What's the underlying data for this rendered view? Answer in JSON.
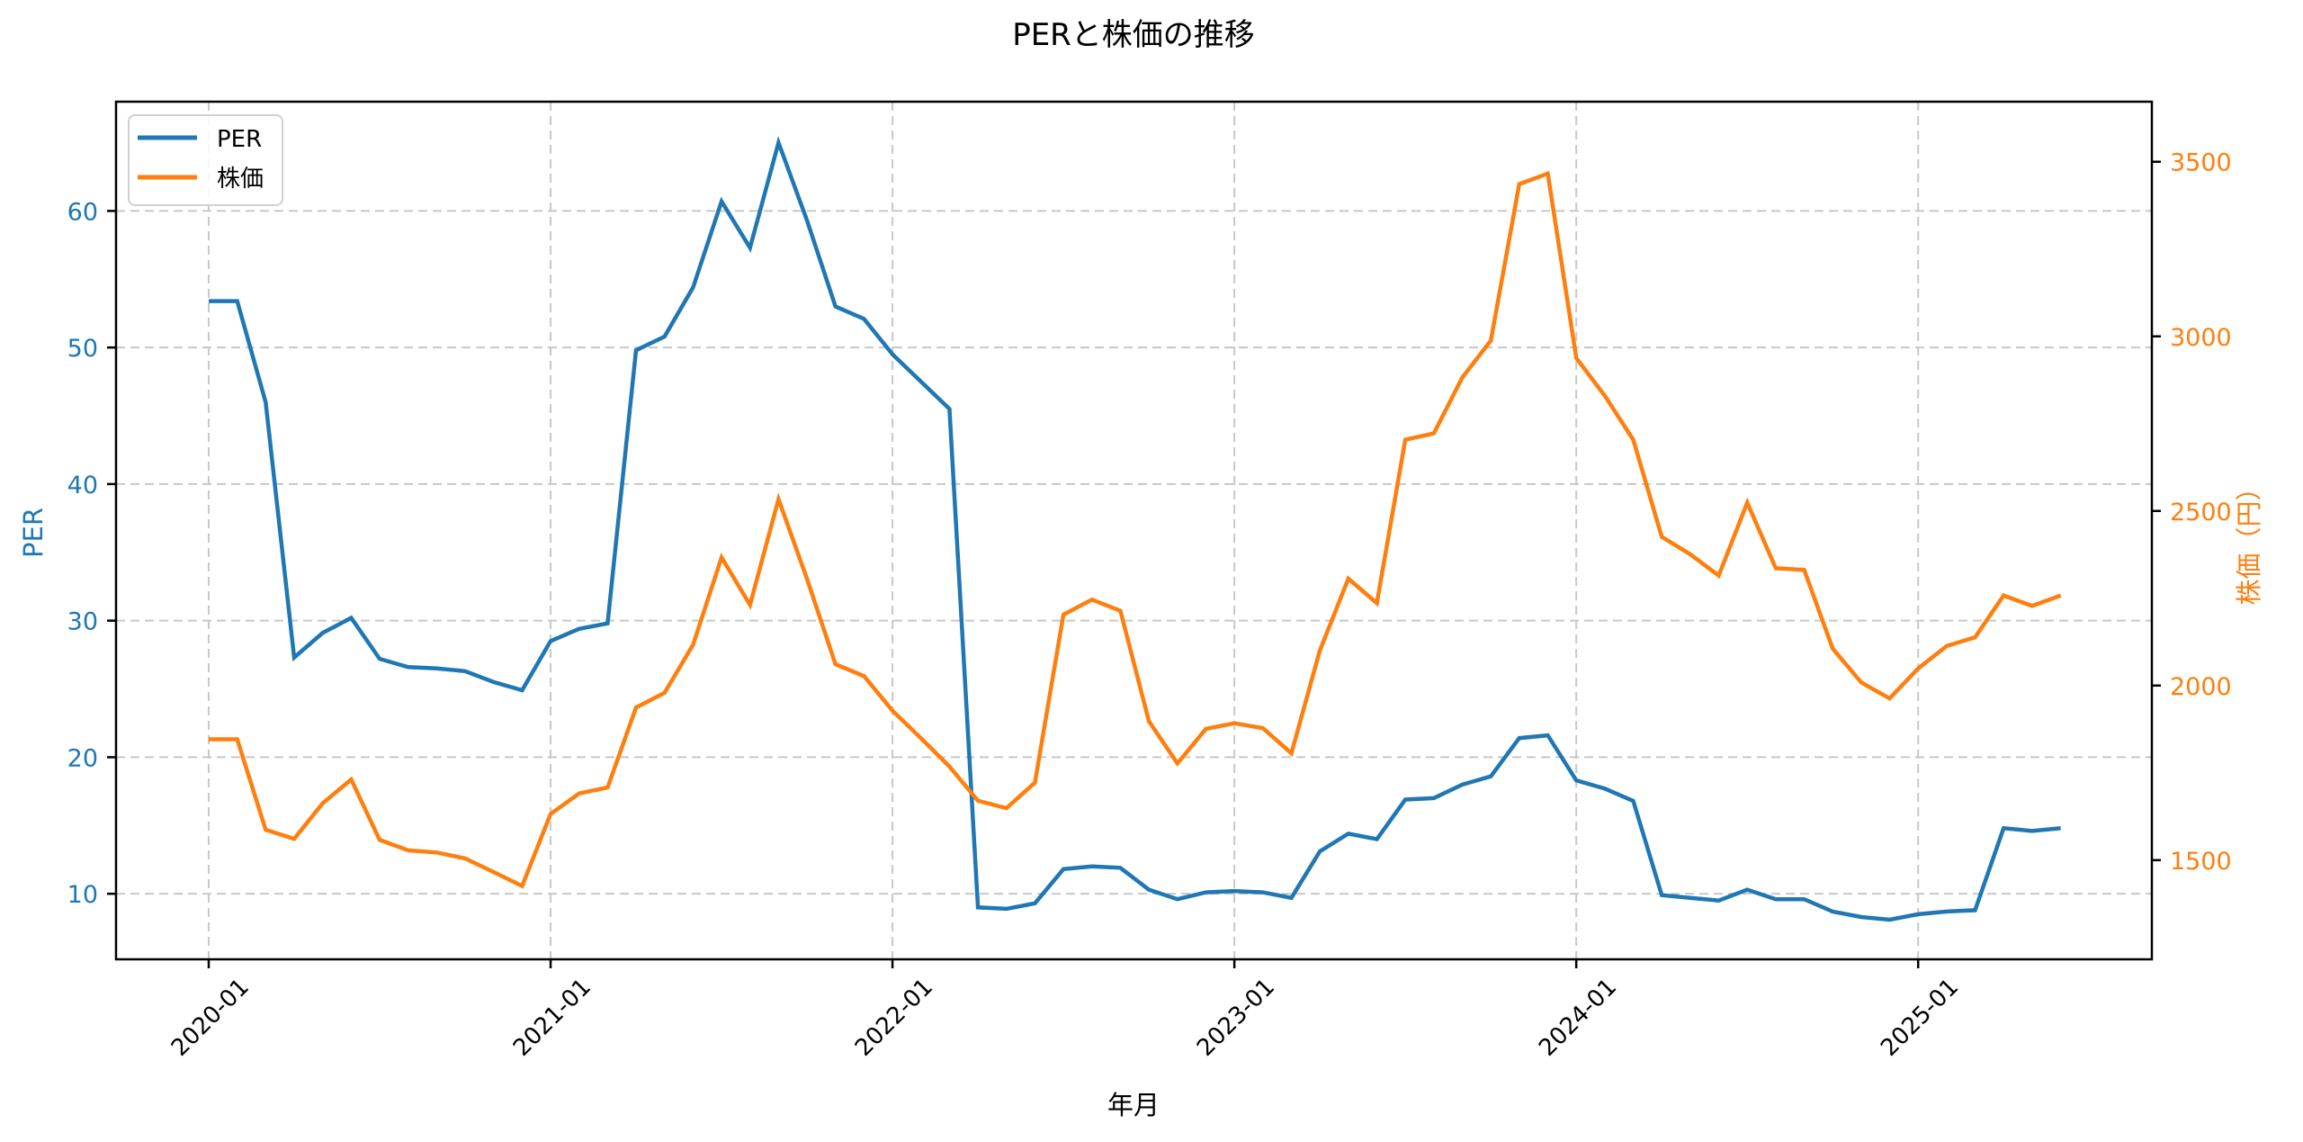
{
  "chart_data": {
    "type": "line",
    "title": "PERと株価の推移",
    "xlabel": "年月",
    "ylabel": "PER",
    "ylabel_right": "株価（円）",
    "x": [
      "2020-01",
      "2020-02",
      "2020-03",
      "2020-04",
      "2020-05",
      "2020-06",
      "2020-07",
      "2020-08",
      "2020-09",
      "2020-10",
      "2020-11",
      "2020-12",
      "2021-01",
      "2021-02",
      "2021-03",
      "2021-04",
      "2021-05",
      "2021-06",
      "2021-07",
      "2021-08",
      "2021-09",
      "2021-10",
      "2021-11",
      "2021-12",
      "2022-01",
      "2022-02",
      "2022-03",
      "2022-04",
      "2022-05",
      "2022-06",
      "2022-07",
      "2022-08",
      "2022-09",
      "2022-10",
      "2022-11",
      "2022-12",
      "2023-01",
      "2023-02",
      "2023-03",
      "2023-04",
      "2023-05",
      "2023-06",
      "2023-07",
      "2023-08",
      "2023-09",
      "2023-10",
      "2023-11",
      "2023-12",
      "2024-01",
      "2024-02",
      "2024-03",
      "2024-04",
      "2024-05",
      "2024-06",
      "2024-07",
      "2024-08",
      "2024-09",
      "2024-10",
      "2024-11",
      "2024-12",
      "2025-01",
      "2025-02",
      "2025-03",
      "2025-04",
      "2025-05",
      "2025-06"
    ],
    "x_ticks": [
      "2020-01",
      "2021-01",
      "2022-01",
      "2023-01",
      "2024-01",
      "2025-01"
    ],
    "series": [
      {
        "name": "PER",
        "axis": "left",
        "color": "#1f77b4",
        "values": [
          53.4,
          53.4,
          46.0,
          27.3,
          29.1,
          30.2,
          27.2,
          26.6,
          26.5,
          26.3,
          25.5,
          24.9,
          28.5,
          29.4,
          29.8,
          49.8,
          50.8,
          54.4,
          60.7,
          57.3,
          65.0,
          59.3,
          53.0,
          52.1,
          49.5,
          47.5,
          45.5,
          9.0,
          8.9,
          9.3,
          11.8,
          12.0,
          11.9,
          10.3,
          9.6,
          10.1,
          10.2,
          10.1,
          9.7,
          13.1,
          14.4,
          14.0,
          16.9,
          17.0,
          18.0,
          18.6,
          21.4,
          21.6,
          18.3,
          17.7,
          16.8,
          9.9,
          9.7,
          9.5,
          10.3,
          9.6,
          9.6,
          8.7,
          8.3,
          8.1,
          8.5,
          8.7,
          8.8,
          14.8,
          14.6,
          14.8
        ]
      },
      {
        "name": "株価",
        "axis": "right",
        "color": "#ff7f0e",
        "values": [
          1846,
          1846,
          1587,
          1561,
          1663,
          1731,
          1558,
          1528,
          1522,
          1505,
          1466,
          1426,
          1632,
          1691,
          1708,
          1937,
          1979,
          2117,
          2367,
          2231,
          2534,
          2305,
          2061,
          2027,
          1928,
          1849,
          1768,
          1670,
          1649,
          1722,
          2203,
          2246,
          2214,
          1898,
          1777,
          1876,
          1892,
          1878,
          1806,
          2100,
          2306,
          2236,
          2704,
          2722,
          2882,
          2988,
          3436,
          3466,
          2938,
          2830,
          2704,
          2426,
          2376,
          2315,
          2524,
          2336,
          2331,
          2106,
          2009,
          1963,
          2049,
          2113,
          2138,
          2258,
          2228,
          2258
        ]
      }
    ],
    "ylim": [
      5.2,
      68.0
    ],
    "yticks": [
      10,
      20,
      30,
      40,
      50,
      60
    ],
    "ylim_right": [
      1216,
      3672
    ],
    "yticks_right": [
      1500,
      2000,
      2500,
      3000,
      3500
    ],
    "grid": true,
    "legend_position": "upper left"
  },
  "legend": {
    "items": [
      {
        "label": "PER",
        "color": "#1f77b4"
      },
      {
        "label": "株価",
        "color": "#ff7f0e"
      }
    ]
  }
}
